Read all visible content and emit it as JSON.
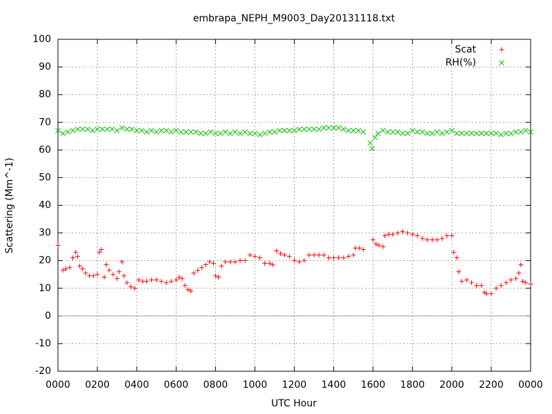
{
  "chart_data": {
    "type": "scatter",
    "title": "embrapa_NEPH_M9003_Day20131118.txt",
    "xlabel": "UTC Hour",
    "ylabel": "Scattering (Mm^-1)",
    "xlim": [
      0,
      24
    ],
    "ylim": [
      -20,
      100
    ],
    "xticks": [
      {
        "value": 0,
        "label": "0000"
      },
      {
        "value": 2,
        "label": "0200"
      },
      {
        "value": 4,
        "label": "0400"
      },
      {
        "value": 6,
        "label": "0600"
      },
      {
        "value": 8,
        "label": "0800"
      },
      {
        "value": 10,
        "label": "1000"
      },
      {
        "value": 12,
        "label": "1200"
      },
      {
        "value": 14,
        "label": "1400"
      },
      {
        "value": 16,
        "label": "1600"
      },
      {
        "value": 18,
        "label": "1800"
      },
      {
        "value": 20,
        "label": "2000"
      },
      {
        "value": 22,
        "label": "2200"
      },
      {
        "value": 24,
        "label": "0000"
      }
    ],
    "yticks": [
      -20,
      -10,
      0,
      10,
      20,
      30,
      40,
      50,
      60,
      70,
      80,
      90,
      100
    ],
    "grid": true,
    "legend": "top right",
    "series": [
      {
        "name": "Scat",
        "color": "#ff0000",
        "marker": "plus",
        "x": [
          0.0,
          0.25,
          0.4,
          0.6,
          0.75,
          0.9,
          1.0,
          1.1,
          1.25,
          1.4,
          1.6,
          1.8,
          2.0,
          2.1,
          2.2,
          2.35,
          2.45,
          2.6,
          2.8,
          3.0,
          3.1,
          3.25,
          3.35,
          3.5,
          3.7,
          3.9,
          4.1,
          4.3,
          4.5,
          4.75,
          5.0,
          5.25,
          5.5,
          5.75,
          6.0,
          6.15,
          6.3,
          6.45,
          6.6,
          6.75,
          6.9,
          7.1,
          7.3,
          7.5,
          7.7,
          7.9,
          8.0,
          8.15,
          8.3,
          8.5,
          8.75,
          9.0,
          9.25,
          9.5,
          9.75,
          10.0,
          10.25,
          10.5,
          10.75,
          10.9,
          11.1,
          11.3,
          11.5,
          11.75,
          12.0,
          12.25,
          12.5,
          12.75,
          13.0,
          13.25,
          13.5,
          13.75,
          14.0,
          14.25,
          14.5,
          14.75,
          15.0,
          15.1,
          15.3,
          15.5,
          16.0,
          16.15,
          16.3,
          16.5,
          16.6,
          16.8,
          17.0,
          17.25,
          17.5,
          17.75,
          18.0,
          18.25,
          18.5,
          18.75,
          19.0,
          19.25,
          19.5,
          19.75,
          20.0,
          20.1,
          20.25,
          20.35,
          20.5,
          20.75,
          21.0,
          21.25,
          21.5,
          21.65,
          21.75,
          22.0,
          22.25,
          22.5,
          22.75,
          23.0,
          23.25,
          23.4,
          23.5,
          23.6,
          23.75,
          24.0
        ],
        "values": [
          25.5,
          16.5,
          17,
          17.5,
          21,
          23,
          21.5,
          18,
          17,
          15.5,
          14.5,
          14.5,
          15,
          23,
          24,
          14,
          18.5,
          16.5,
          15,
          13.5,
          16,
          19.5,
          14.5,
          12,
          10.5,
          10,
          13,
          12.5,
          12.5,
          13,
          13,
          12.5,
          12,
          12.5,
          13,
          14,
          13.5,
          11,
          9.5,
          9,
          15.5,
          16.5,
          17.5,
          18.5,
          19.5,
          19,
          14.5,
          14,
          18,
          19.5,
          19.5,
          19.5,
          20,
          20,
          22,
          21.5,
          21,
          19,
          19,
          18.5,
          23.5,
          22.5,
          22,
          21.5,
          20,
          19.5,
          20,
          22,
          22,
          22,
          22,
          21,
          21,
          21,
          21,
          21.5,
          22,
          24.5,
          24.5,
          24,
          27.5,
          26,
          25.5,
          25,
          29,
          29.5,
          29.5,
          30,
          30.5,
          30,
          29.5,
          29,
          28,
          27.5,
          27.5,
          27.5,
          28,
          29,
          29,
          23,
          21,
          16,
          12.5,
          13,
          12,
          11,
          11,
          8.5,
          8,
          8,
          10,
          11,
          12,
          13,
          13.5,
          15.5,
          18.5,
          12.5,
          12,
          11.5
        ]
      },
      {
        "name": "RH(%)",
        "color": "#00c000",
        "marker": "cross",
        "x": [
          0,
          0.25,
          0.5,
          0.75,
          1,
          1.25,
          1.5,
          1.75,
          2,
          2.25,
          2.5,
          2.75,
          3,
          3.25,
          3.5,
          3.75,
          4,
          4.25,
          4.5,
          4.75,
          5,
          5.25,
          5.5,
          5.75,
          6,
          6.25,
          6.5,
          6.75,
          7,
          7.25,
          7.5,
          7.75,
          8,
          8.25,
          8.5,
          8.75,
          9,
          9.25,
          9.5,
          9.75,
          10,
          10.25,
          10.5,
          10.75,
          11,
          11.25,
          11.5,
          11.75,
          12,
          12.25,
          12.5,
          12.75,
          13,
          13.25,
          13.5,
          13.75,
          14,
          14.25,
          14.5,
          14.75,
          15,
          15.25,
          15.5,
          15.85,
          15.95,
          16.1,
          16.25,
          16.5,
          16.75,
          17,
          17.25,
          17.5,
          17.75,
          18,
          18.25,
          18.5,
          18.75,
          19,
          19.25,
          19.5,
          19.75,
          20,
          20.25,
          20.5,
          20.75,
          21,
          21.25,
          21.5,
          21.75,
          22,
          22.25,
          22.5,
          22.75,
          23,
          23.25,
          23.5,
          23.75,
          24
        ],
        "values": [
          67,
          66,
          66.5,
          67,
          67.5,
          67.5,
          67.5,
          67,
          67.5,
          67.5,
          67.5,
          67.5,
          67,
          68,
          67.5,
          67.5,
          67,
          67,
          66.5,
          67,
          66.5,
          67,
          67,
          66.5,
          67,
          66.5,
          66.5,
          66.5,
          66.5,
          66,
          66,
          66.5,
          66,
          66,
          66.5,
          66,
          66.5,
          66,
          66.5,
          66,
          66,
          65.5,
          66,
          66.5,
          66.5,
          67,
          67,
          67,
          67,
          67.5,
          67.5,
          67.5,
          67.5,
          67.5,
          68,
          68,
          68,
          68,
          67.5,
          67,
          67,
          67,
          66.5,
          62.5,
          60.5,
          64.5,
          66,
          67,
          66.5,
          66.5,
          66.5,
          66,
          66,
          67,
          66.5,
          66.5,
          66,
          66,
          66.5,
          66,
          66.5,
          67,
          66,
          66,
          66,
          66,
          66,
          66,
          66,
          66,
          66,
          65.5,
          66,
          66,
          66.5,
          66.5,
          67,
          66.5
        ]
      }
    ]
  }
}
